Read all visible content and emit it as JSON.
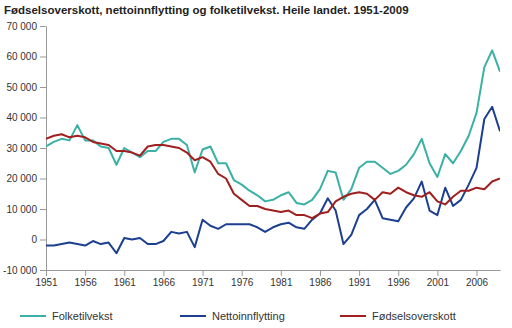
{
  "chart_data": {
    "type": "line",
    "title": "Fødselsoverskott, nettoinnflytting og folketilvekst. Heile landet. 1951-2009",
    "x": [
      1951,
      1952,
      1953,
      1954,
      1955,
      1956,
      1957,
      1958,
      1959,
      1960,
      1961,
      1962,
      1963,
      1964,
      1965,
      1966,
      1967,
      1968,
      1969,
      1970,
      1971,
      1972,
      1973,
      1974,
      1975,
      1976,
      1977,
      1978,
      1979,
      1980,
      1981,
      1982,
      1983,
      1984,
      1985,
      1986,
      1987,
      1988,
      1989,
      1990,
      1991,
      1992,
      1993,
      1994,
      1995,
      1996,
      1997,
      1998,
      1999,
      2000,
      2001,
      2002,
      2003,
      2004,
      2005,
      2006,
      2007,
      2008,
      2009
    ],
    "series": [
      {
        "name": "Folketilvekst",
        "color": "#3bb0a5",
        "values": [
          30500,
          32000,
          33000,
          32500,
          37500,
          32500,
          32500,
          30500,
          30000,
          24500,
          30000,
          28500,
          27000,
          29000,
          29000,
          32000,
          33000,
          33000,
          31000,
          22000,
          29500,
          30500,
          25000,
          25000,
          19500,
          18000,
          16000,
          14500,
          12500,
          13000,
          14500,
          15500,
          12000,
          11500,
          13000,
          16500,
          22500,
          22000,
          13000,
          16500,
          23500,
          25500,
          25500,
          23500,
          21500,
          22500,
          24500,
          28000,
          33000,
          25000,
          20500,
          28000,
          25000,
          29000,
          34000,
          41500,
          56500,
          62000,
          55000
        ]
      },
      {
        "name": "Nettoinnflytting",
        "color": "#1d3f8f",
        "values": [
          -2000,
          -2000,
          -1500,
          -1000,
          -1500,
          -2000,
          -500,
          -1500,
          -1000,
          -4500,
          500,
          0,
          500,
          -1500,
          -1500,
          -500,
          2500,
          2000,
          2500,
          -2500,
          6500,
          4500,
          3500,
          5000,
          5000,
          5000,
          5000,
          4000,
          2500,
          4000,
          5000,
          5500,
          4000,
          3500,
          6500,
          8500,
          13500,
          9500,
          -1500,
          1500,
          8000,
          10000,
          13000,
          7000,
          6500,
          6000,
          10500,
          13500,
          19000,
          9500,
          8000,
          17000,
          11000,
          13000,
          18000,
          23500,
          39500,
          43500,
          35500
        ]
      },
      {
        "name": "Fødselsoverskott",
        "color": "#a01f1f",
        "values": [
          33000,
          34000,
          34500,
          33500,
          34000,
          33500,
          32000,
          31500,
          31000,
          29000,
          29000,
          28500,
          27500,
          30500,
          31000,
          31000,
          30500,
          30000,
          28500,
          26000,
          27000,
          25500,
          21500,
          20000,
          15000,
          13000,
          11000,
          11000,
          10000,
          9500,
          9000,
          9500,
          8000,
          8000,
          7000,
          8500,
          9000,
          12500,
          14000,
          15000,
          15500,
          15000,
          13000,
          15500,
          15000,
          17000,
          15500,
          14500,
          14000,
          15500,
          12500,
          11500,
          14000,
          16000,
          16000,
          17000,
          16500,
          19000,
          20000
        ]
      }
    ],
    "xlim": [
      1951,
      2009
    ],
    "xticks": [
      1951,
      1956,
      1961,
      1966,
      1971,
      1976,
      1981,
      1986,
      1991,
      1996,
      2001,
      2006
    ],
    "ylim": [
      -10000,
      70000
    ],
    "yticks": [
      {
        "value": -10000,
        "label": "-10 000"
      },
      {
        "value": 0,
        "label": "0"
      },
      {
        "value": 10000,
        "label": "10 000"
      },
      {
        "value": 20000,
        "label": "20 000"
      },
      {
        "value": 30000,
        "label": "30 000"
      },
      {
        "value": 40000,
        "label": "40 000"
      },
      {
        "value": 50000,
        "label": "50 000"
      },
      {
        "value": 60000,
        "label": "60 000"
      },
      {
        "value": 70000,
        "label": "70 000"
      }
    ],
    "grid": false,
    "legend": "bottom"
  }
}
